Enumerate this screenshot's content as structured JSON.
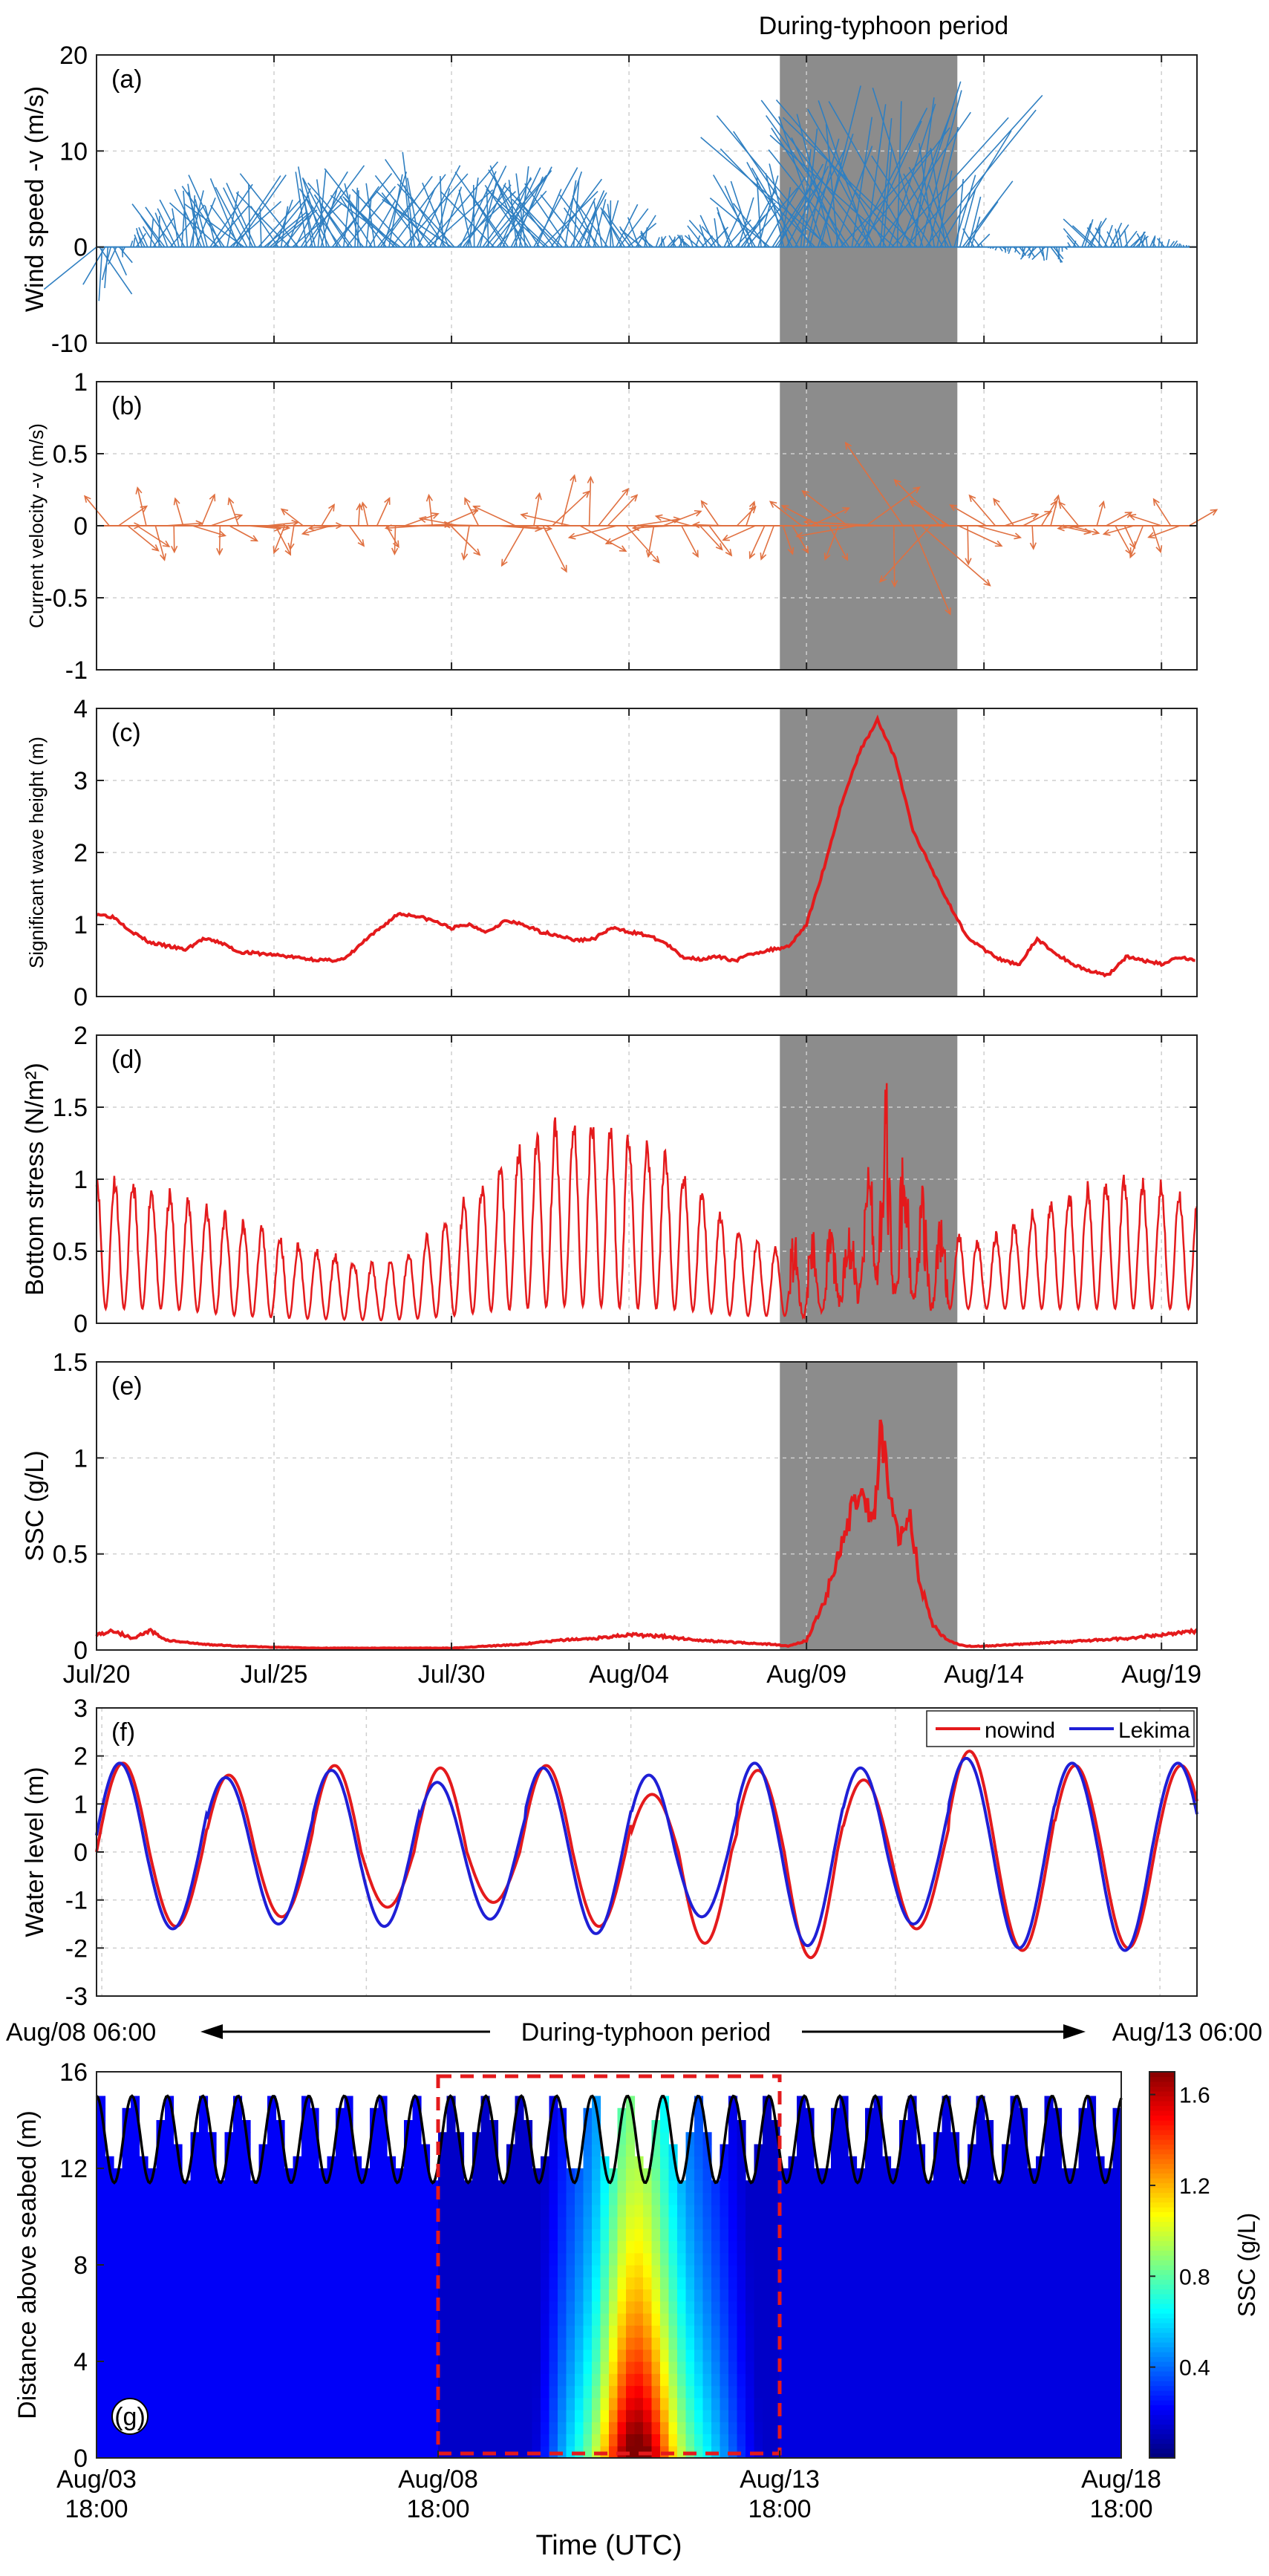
{
  "figure": {
    "top_title": "During-typhoon period",
    "typhoon_arrow_label": "During-typhoon period",
    "typhoon_arrow_left": "Aug/08 06:00",
    "typhoon_arrow_right": "Aug/13 06:00",
    "xlabel_bottom": "Time (UTC)",
    "colors": {
      "wind": "#2f7fc1",
      "current": "#e07040",
      "red": "#e41a1c",
      "blue": "#1f1fd6",
      "shade": "#8c8c8c"
    }
  },
  "chart_data": [
    {
      "panel": "(a)",
      "type": "line",
      "subtype": "vector stick plot",
      "ylabel": "Wind speed -v (m/s)",
      "ylim": [
        -10,
        20
      ],
      "yticks": [
        "-10",
        "0",
        "10",
        "20"
      ],
      "xlim": [
        0,
        31
      ],
      "xtick_labels": [
        "Jul/20",
        "Jul/25",
        "Jul/30",
        "Aug/04",
        "Aug/09",
        "Aug/14",
        "Aug/19"
      ],
      "xtick_days": [
        0,
        5,
        10,
        15,
        20,
        25,
        30
      ],
      "shaded_days": [
        19.25,
        24.25
      ],
      "envelope_days": [
        0,
        0.5,
        1,
        2,
        3,
        4,
        5,
        6,
        7,
        8,
        9,
        10,
        11,
        12,
        13,
        14,
        15,
        16,
        17,
        18,
        18.5,
        19,
        19.5,
        20,
        20.5,
        21,
        21.5,
        22,
        22.5,
        23,
        23.5,
        24,
        24.5,
        25,
        26,
        27,
        28,
        29,
        30,
        31
      ],
      "envelope_values": [
        -8,
        -3,
        1,
        5,
        7,
        8,
        6,
        9,
        7,
        8,
        10,
        9,
        8,
        9,
        8,
        6,
        4,
        1,
        2,
        5,
        8,
        8,
        11,
        13,
        19,
        17,
        16,
        15,
        17,
        19,
        15,
        12,
        6,
        0,
        -1,
        -2,
        4,
        2,
        1,
        0
      ]
    },
    {
      "panel": "(b)",
      "type": "line",
      "subtype": "vector stick plot",
      "ylabel": "Current velocity -v (m/s)",
      "ylim": [
        -1,
        1
      ],
      "yticks": [
        "-1",
        "-0.5",
        "0",
        "0.5",
        "1"
      ],
      "xlim": [
        0,
        31
      ],
      "shaded_days": [
        19.25,
        24.25
      ],
      "amplitude_days": [
        0,
        2,
        4,
        6,
        8,
        10,
        12,
        14,
        16,
        18,
        20,
        21,
        22,
        23,
        24,
        26,
        28,
        30,
        31
      ],
      "amplitude_values": [
        0.3,
        0.28,
        0.25,
        0.22,
        0.25,
        0.3,
        0.35,
        0.4,
        0.3,
        0.25,
        0.3,
        0.4,
        0.55,
        0.8,
        0.4,
        0.25,
        0.22,
        0.25,
        0.25
      ]
    },
    {
      "panel": "(c)",
      "type": "line",
      "ylabel": "Significant wave height (m)",
      "ylim": [
        0,
        4
      ],
      "yticks": [
        "0",
        "1",
        "2",
        "3",
        "4"
      ],
      "xlim": [
        0,
        31
      ],
      "shaded_days": [
        19.25,
        24.25
      ],
      "x": [
        0,
        0.5,
        1,
        1.5,
        2,
        2.5,
        3,
        3.5,
        4,
        4.5,
        5,
        5.5,
        6,
        6.5,
        7,
        7.5,
        8,
        8.5,
        9,
        9.5,
        10,
        10.5,
        11,
        11.5,
        12,
        12.5,
        13,
        13.5,
        14,
        14.5,
        15,
        15.5,
        16,
        16.5,
        17,
        17.5,
        18,
        18.5,
        19,
        19.5,
        20,
        20.5,
        21,
        21.5,
        22,
        22.5,
        23,
        23.5,
        24,
        24.5,
        25,
        25.5,
        26,
        26.5,
        27,
        27.5,
        28,
        28.5,
        29,
        29.5,
        30,
        30.5,
        31
      ],
      "y": [
        1.15,
        1.1,
        0.9,
        0.75,
        0.7,
        0.65,
        0.8,
        0.75,
        0.62,
        0.6,
        0.58,
        0.55,
        0.52,
        0.5,
        0.52,
        0.75,
        0.95,
        1.15,
        1.12,
        1.05,
        0.95,
        1.0,
        0.9,
        1.05,
        1.0,
        0.9,
        0.85,
        0.78,
        0.8,
        0.95,
        0.9,
        0.85,
        0.75,
        0.55,
        0.52,
        0.55,
        0.5,
        0.6,
        0.65,
        0.7,
        1.0,
        1.8,
        2.7,
        3.4,
        3.85,
        3.3,
        2.3,
        1.8,
        1.3,
        0.85,
        0.65,
        0.5,
        0.45,
        0.8,
        0.6,
        0.45,
        0.35,
        0.3,
        0.55,
        0.5,
        0.45,
        0.55,
        0.5
      ]
    },
    {
      "panel": "(d)",
      "type": "line",
      "ylabel": "Bottom stress (N/m²)",
      "ylim": [
        0,
        2
      ],
      "yticks": [
        "0",
        "0.5",
        "1",
        "1.5",
        "2"
      ],
      "xlim": [
        0,
        31
      ],
      "shaded_days": [
        19.25,
        24.25
      ],
      "oscillation_period_days": 0.517,
      "envelope_days": [
        0,
        2,
        4,
        6,
        8,
        9,
        10,
        11,
        12,
        13,
        14,
        15,
        16,
        17,
        18,
        19,
        20,
        21,
        21.5,
        22,
        22.5,
        23,
        24,
        25,
        26,
        27,
        28,
        29,
        30,
        31
      ],
      "envelope_max": [
        1.1,
        0.95,
        0.75,
        0.55,
        0.42,
        0.55,
        0.8,
        1.05,
        1.3,
        1.45,
        1.5,
        1.4,
        1.25,
        0.95,
        0.7,
        0.55,
        0.5,
        0.6,
        0.7,
        1.4,
        1.1,
        0.85,
        0.65,
        0.6,
        0.75,
        0.9,
        1.0,
        1.05,
        1.0,
        0.9
      ],
      "envelope_min": [
        0.1,
        0.1,
        0.05,
        0.03,
        0.02,
        0.03,
        0.05,
        0.08,
        0.1,
        0.12,
        0.12,
        0.1,
        0.1,
        0.08,
        0.05,
        0.05,
        0.05,
        0.15,
        0.2,
        0.3,
        0.2,
        0.15,
        0.1,
        0.1,
        0.1,
        0.1,
        0.1,
        0.1,
        0.1,
        0.1
      ]
    },
    {
      "panel": "(e)",
      "type": "line",
      "ylabel": "SSC (g/L)",
      "ylim": [
        0,
        1.5
      ],
      "yticks": [
        "0",
        "0.5",
        "1",
        "1.5"
      ],
      "xlim": [
        0,
        31
      ],
      "shaded_days": [
        19.25,
        24.25
      ],
      "x": [
        0,
        0.5,
        1,
        1.5,
        2,
        3,
        4,
        6,
        8,
        10,
        12,
        13,
        14,
        15,
        16,
        17,
        18,
        19,
        19.5,
        20,
        20.5,
        21,
        21.3,
        21.6,
        21.9,
        22.1,
        22.3,
        22.6,
        22.9,
        23.2,
        23.5,
        23.8,
        24.1,
        24.5,
        25,
        26,
        27,
        28,
        29,
        30,
        31
      ],
      "y": [
        0.08,
        0.1,
        0.06,
        0.1,
        0.05,
        0.03,
        0.02,
        0.01,
        0.01,
        0.01,
        0.03,
        0.05,
        0.06,
        0.08,
        0.07,
        0.05,
        0.04,
        0.03,
        0.02,
        0.05,
        0.25,
        0.55,
        0.75,
        0.8,
        0.65,
        1.15,
        0.9,
        0.6,
        0.7,
        0.35,
        0.15,
        0.08,
        0.04,
        0.02,
        0.02,
        0.03,
        0.04,
        0.05,
        0.06,
        0.08,
        0.1
      ]
    },
    {
      "panel": "(f)",
      "type": "line",
      "ylabel": "Water level (m)",
      "ylim": [
        -3,
        3
      ],
      "yticks": [
        "-3",
        "-2",
        "-1",
        "0",
        "1",
        "2",
        "3"
      ],
      "tidal_period_days": 1.0,
      "series": [
        {
          "name": "nowind",
          "color_key": "red"
        },
        {
          "name": "Lekima",
          "color_key": "blue"
        }
      ],
      "cycle_peaks_nowind": [
        1.85,
        1.6,
        1.8,
        1.75,
        1.8,
        1.2,
        1.7,
        1.5,
        2.1,
        1.8
      ],
      "cycle_troughs_nowind": [
        -1.55,
        -1.35,
        -1.15,
        -1.05,
        -1.55,
        -1.9,
        -2.2,
        -1.6,
        -2.05,
        -2.0
      ],
      "cycle_peaks_lekima": [
        1.85,
        1.55,
        1.7,
        1.45,
        1.75,
        1.6,
        1.85,
        1.75,
        1.95,
        1.85
      ],
      "cycle_troughs_lekima": [
        -1.6,
        -1.5,
        -1.55,
        -1.4,
        -1.7,
        -1.35,
        -1.95,
        -1.5,
        -2.0,
        -2.05
      ]
    },
    {
      "panel": "(g)",
      "type": "heatmap",
      "ylabel": "Distance above seabed (m)",
      "ylim": [
        0,
        16
      ],
      "yticks": [
        "0",
        "4",
        "8",
        "12",
        "16"
      ],
      "xtick_labels": [
        "Aug/03\n18:00",
        "Aug/08\n18:00",
        "Aug/13\n18:00",
        "Aug/18\n18:00"
      ],
      "colorbar_label": "SSC (g/L)",
      "colorbar_ticks": [
        "0.4",
        "0.8",
        "1.2",
        "1.6"
      ],
      "clim": [
        0,
        1.7
      ],
      "dashed_box": "Aug/08 18:00 - Aug/13 18:00",
      "surface_mean_m": 13.2,
      "surface_amplitude_m": 1.8,
      "ssc_peak": 1.6
    }
  ]
}
